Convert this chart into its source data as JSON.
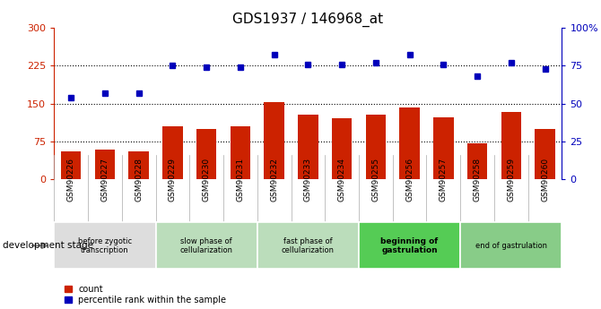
{
  "title": "GDS1937 / 146968_at",
  "samples": [
    "GSM90226",
    "GSM90227",
    "GSM90228",
    "GSM90229",
    "GSM90230",
    "GSM90231",
    "GSM90232",
    "GSM90233",
    "GSM90234",
    "GSM90255",
    "GSM90256",
    "GSM90257",
    "GSM90258",
    "GSM90259",
    "GSM90260"
  ],
  "bar_values": [
    55,
    58,
    56,
    105,
    100,
    105,
    152,
    128,
    120,
    128,
    143,
    122,
    72,
    133,
    100
  ],
  "dot_values_pct": [
    54,
    57,
    57,
    75,
    74,
    74,
    82,
    76,
    76,
    77,
    82,
    76,
    68,
    77,
    73
  ],
  "bar_color": "#cc2200",
  "dot_color": "#0000bb",
  "ylim_left": [
    0,
    300
  ],
  "ylim_right": [
    0,
    100
  ],
  "yticks_left": [
    0,
    75,
    150,
    225,
    300
  ],
  "yticks_right": [
    0,
    25,
    50,
    75,
    100
  ],
  "yticklabels_right": [
    "0",
    "25",
    "50",
    "75",
    "100%"
  ],
  "hlines": [
    75,
    150,
    225
  ],
  "stage_groups": [
    {
      "label": "before zygotic\ntranscription",
      "span": [
        0,
        2
      ],
      "color": "#dddddd",
      "bold": false
    },
    {
      "label": "slow phase of\ncellularization",
      "span": [
        3,
        5
      ],
      "color": "#bbddbb",
      "bold": false
    },
    {
      "label": "fast phase of\ncellularization",
      "span": [
        6,
        8
      ],
      "color": "#bbddbb",
      "bold": false
    },
    {
      "label": "beginning of\ngastrulation",
      "span": [
        9,
        11
      ],
      "color": "#55cc55",
      "bold": true
    },
    {
      "label": "end of gastrulation",
      "span": [
        12,
        14
      ],
      "color": "#88cc88",
      "bold": false
    }
  ],
  "dev_stage_label": "development stage",
  "legend_count_label": "count",
  "legend_pct_label": "percentile rank within the sample",
  "title_fontsize": 11,
  "axis_color_left": "#cc2200",
  "axis_color_right": "#0000bb"
}
